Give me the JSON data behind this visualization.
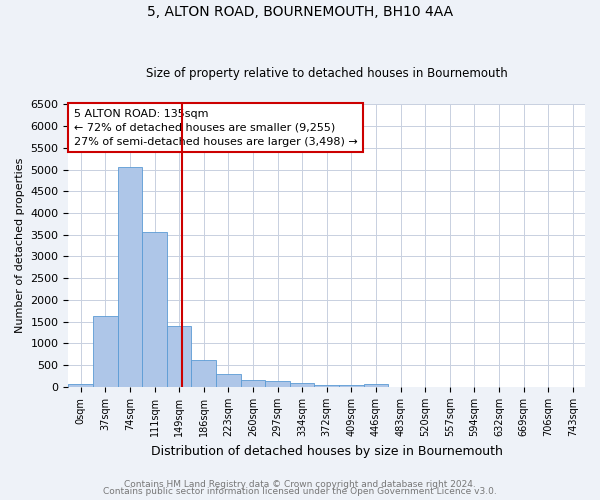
{
  "title1": "5, ALTON ROAD, BOURNEMOUTH, BH10 4AA",
  "title2": "Size of property relative to detached houses in Bournemouth",
  "xlabel": "Distribution of detached houses by size in Bournemouth",
  "ylabel": "Number of detached properties",
  "bar_labels": [
    "0sqm",
    "37sqm",
    "74sqm",
    "111sqm",
    "149sqm",
    "186sqm",
    "223sqm",
    "260sqm",
    "297sqm",
    "334sqm",
    "372sqm",
    "409sqm",
    "446sqm",
    "483sqm",
    "520sqm",
    "557sqm",
    "594sqm",
    "632sqm",
    "669sqm",
    "706sqm",
    "743sqm"
  ],
  "bar_values": [
    75,
    1620,
    5050,
    3570,
    1400,
    610,
    300,
    155,
    130,
    95,
    50,
    35,
    65,
    0,
    0,
    0,
    0,
    0,
    0,
    0,
    0
  ],
  "bar_color": "#aec6e8",
  "bar_edge_color": "#5b9bd5",
  "vline_color": "#cc0000",
  "annotation_text": "5 ALTON ROAD: 135sqm\n← 72% of detached houses are smaller (9,255)\n27% of semi-detached houses are larger (3,498) →",
  "annotation_box_color": "#ffffff",
  "annotation_box_edge": "#cc0000",
  "ylim": [
    0,
    6500
  ],
  "yticks": [
    0,
    500,
    1000,
    1500,
    2000,
    2500,
    3000,
    3500,
    4000,
    4500,
    5000,
    5500,
    6000,
    6500
  ],
  "footer1": "Contains HM Land Registry data © Crown copyright and database right 2024.",
  "footer2": "Contains public sector information licensed under the Open Government Licence v3.0.",
  "background_color": "#eef2f8",
  "plot_bg_color": "#ffffff",
  "grid_color": "#c8d0e0"
}
